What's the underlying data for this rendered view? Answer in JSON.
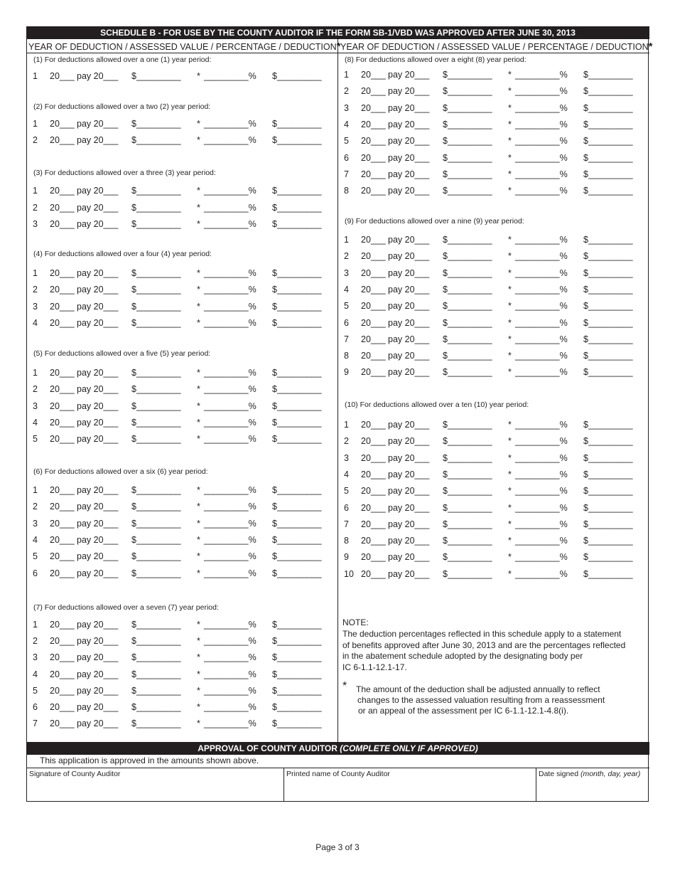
{
  "header": {
    "title": "SCHEDULE B - FOR USE BY THE COUNTY AUDITOR IF THE FORM SB-1/VBD WAS APPROVED AFTER JUNE 30, 2013"
  },
  "column_headers": {
    "left": "YEAR OF DEDUCTION / ASSESSED VALUE / PERCENTAGE / DEDUCTION",
    "right": "YEAR OF DEDUCTION / ASSESSED VALUE / PERCENTAGE / DEDUCTION",
    "asterisk": "*"
  },
  "row_fields": {
    "year": "20___",
    "pay": "pay 20___",
    "assessed": "$_________",
    "pct_star": "*",
    "pct": "_________%",
    "deduction": "$_________"
  },
  "sections": [
    {
      "title": "(1) For deductions allowed over a one (1) year period:",
      "rows": [
        "1"
      ]
    },
    {
      "title": "(2) For deductions allowed over a two (2) year period:",
      "rows": [
        "1",
        "2"
      ]
    },
    {
      "title": "(3) For deductions allowed over a three (3) year period:",
      "rows": [
        "1",
        "2",
        "3"
      ]
    },
    {
      "title": "(4) For deductions allowed over a four (4) year period:",
      "rows": [
        "1",
        "2",
        "3",
        "4"
      ]
    },
    {
      "title": "(5) For deductions allowed over a five (5) year period:",
      "rows": [
        "1",
        "2",
        "3",
        "4",
        "5"
      ]
    },
    {
      "title": "(6) For deductions allowed over a six (6) year period:",
      "rows": [
        "1",
        "2",
        "3",
        "4",
        "5",
        "6"
      ]
    },
    {
      "title": "(7) For deductions allowed over a seven (7) year period:",
      "rows": [
        "1",
        "2",
        "3",
        "4",
        "5",
        "6",
        "7"
      ]
    },
    {
      "title": "(8) For deductions allowed over a eight (8) year period:",
      "rows": [
        "1",
        "2",
        "3",
        "4",
        "5",
        "6",
        "7",
        "8"
      ]
    },
    {
      "title": "(9) For deductions allowed over a nine (9) year period:",
      "rows": [
        "1",
        "2",
        "3",
        "4",
        "5",
        "6",
        "7",
        "8",
        "9"
      ]
    },
    {
      "title": "(10) For deductions allowed over a ten (10) year period:",
      "rows": [
        "1",
        "2",
        "3",
        "4",
        "5",
        "6",
        "7",
        "8",
        "9",
        "10"
      ]
    }
  ],
  "note": {
    "heading": "NOTE:",
    "lines": [
      "The deduction percentages reflected in this schedule apply to a statement",
      "of benefits approved after June 30, 2013 and are the percentages reflected",
      "in the abatement schedule adopted by the designating body per",
      "IC 6-1.1-12.1-17."
    ],
    "asterisk": "*",
    "footnote_lines": [
      "The amount of the deduction shall be adjusted annually to reflect",
      "changes to the assessed valuation resulting from a reassessment",
      "or an appeal of the assessment per IC 6-1.1-12.1-4.8(i)."
    ]
  },
  "approval": {
    "title": "APPROVAL OF COUNTY AUDITOR",
    "title_italic": "(COMPLETE ONLY IF APPROVED)",
    "statement": "This application is approved in the amounts shown above.",
    "signature_label": "Signature of County Auditor",
    "printed_name_label": "Printed name of County Auditor",
    "date_label": "Date signed",
    "date_hint": "(month, day, year)"
  },
  "footer": {
    "page": "Page 3 of 3"
  }
}
